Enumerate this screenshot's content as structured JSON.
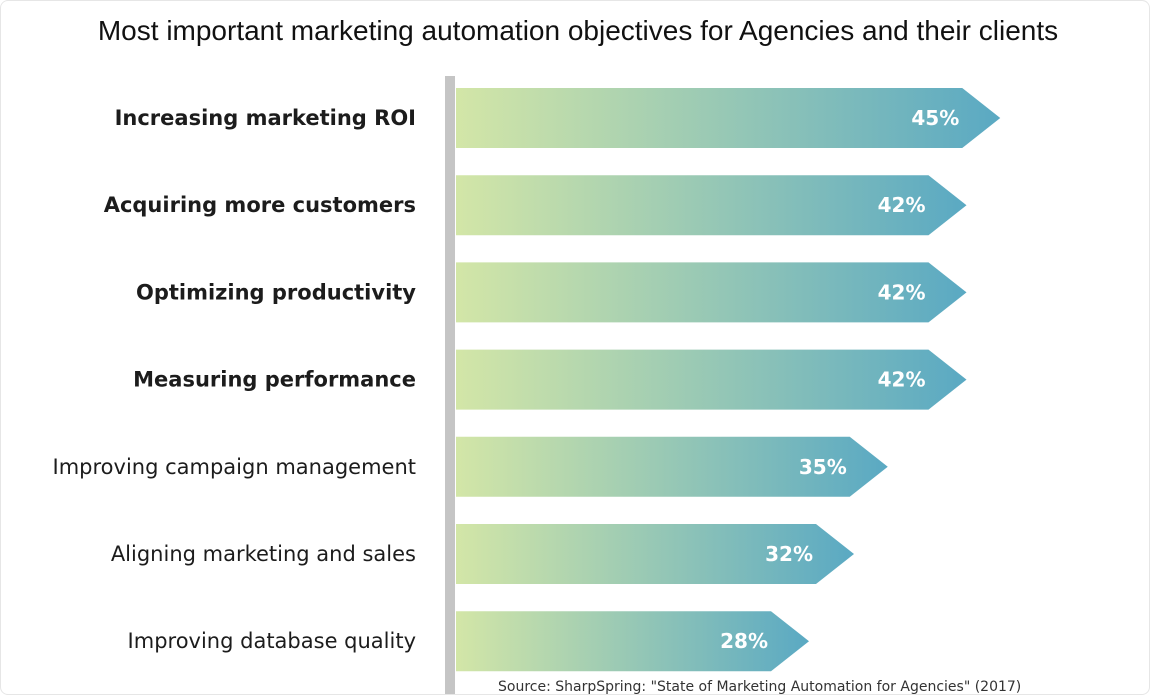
{
  "chart_data": {
    "type": "bar",
    "orientation": "horizontal",
    "title": "Most important marketing automation objectives for Agencies and their clients",
    "categories": [
      "Increasing marketing ROI",
      "Acquiring more customers",
      "Optimizing productivity",
      "Measuring performance",
      "Improving campaign management",
      "Aligning marketing and sales",
      "Improving database quality"
    ],
    "values": [
      45,
      42,
      42,
      42,
      35,
      32,
      28
    ],
    "data_labels": [
      "45%",
      "42%",
      "42%",
      "42%",
      "35%",
      "32%",
      "28%"
    ],
    "highlighted": [
      true,
      true,
      true,
      true,
      false,
      false,
      false
    ],
    "xlabel": "",
    "ylabel": "",
    "unit": "%",
    "grid": false,
    "legend": "none",
    "source": "Source: SharpSpring: \"State of Marketing Automation for Agencies\" (2017)",
    "colors": {
      "gradient_start": "#d3e6a7",
      "gradient_end": "#5aa9c3",
      "axis": "#c5c5c5",
      "label_text": "#1c1c1c",
      "value_text": "#ffffff"
    }
  }
}
